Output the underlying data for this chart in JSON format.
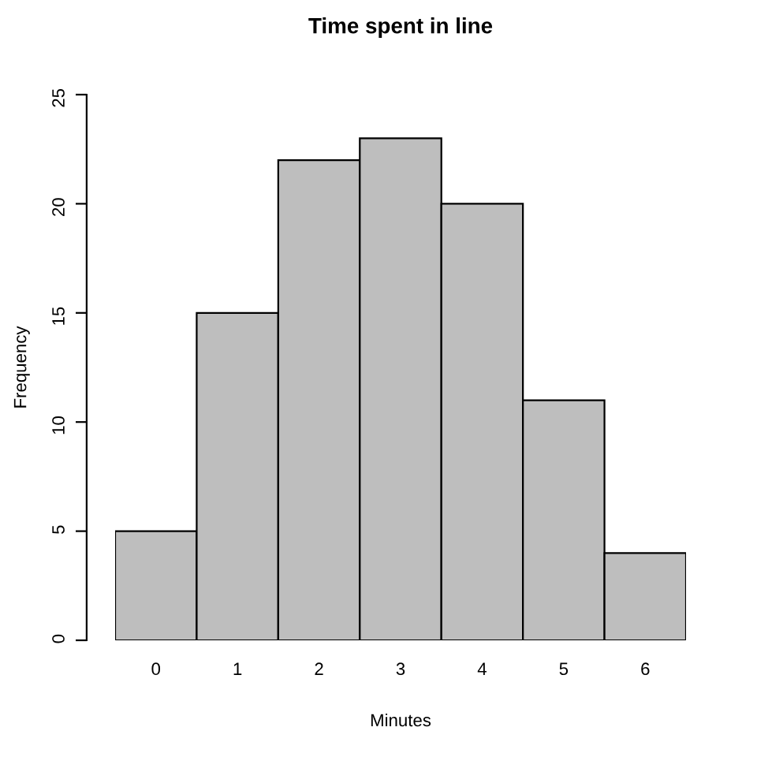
{
  "chart_data": {
    "type": "bar",
    "title": "Time spent in line",
    "xlabel": "Minutes",
    "ylabel": "Frequency",
    "categories": [
      "0",
      "1",
      "2",
      "3",
      "4",
      "5",
      "6"
    ],
    "values": [
      5,
      15,
      22,
      23,
      20,
      11,
      4
    ],
    "color": "#bebebe",
    "ylim": [
      0,
      25
    ],
    "yticks": [
      0,
      5,
      10,
      15,
      20,
      25
    ],
    "grid": false
  }
}
